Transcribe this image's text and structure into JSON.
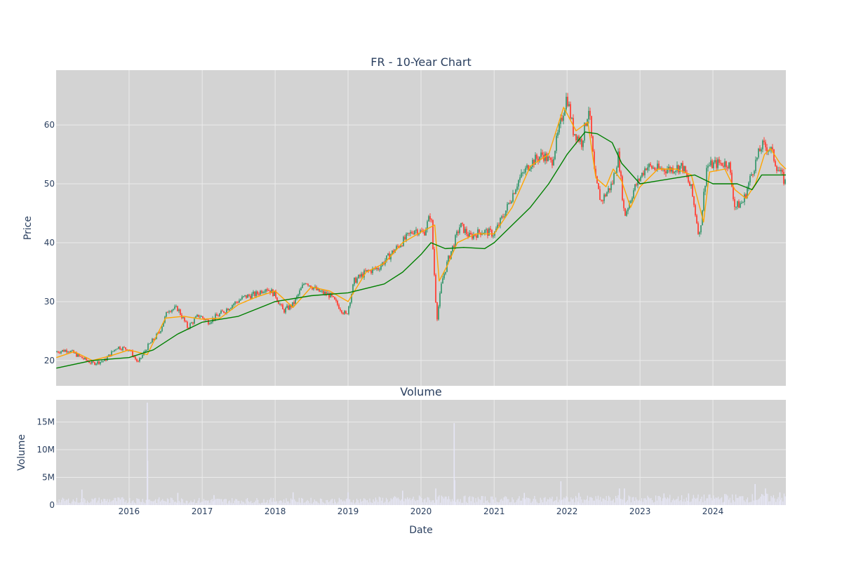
{
  "chart_data": [
    {
      "type": "candlestick",
      "title": "FR - 10-Year Chart",
      "ylabel": "Price",
      "xlabel": "",
      "xlim": [
        "2015-01-01",
        "2024-12-31"
      ],
      "ylim": [
        15.7,
        69.3
      ],
      "yticks": [
        20,
        30,
        40,
        50,
        60
      ],
      "xticks": [
        "2016",
        "2017",
        "2018",
        "2019",
        "2020",
        "2021",
        "2022",
        "2023",
        "2024"
      ],
      "grid": true,
      "colors": {
        "background": "#d3d3d3",
        "grid": "#ebebeb",
        "increasing": "#3d9970",
        "decreasing": "#ff4136",
        "ma_short": "#ffa500",
        "ma_long": "#008000"
      },
      "close_series": {
        "x": [
          "2015-01-02",
          "2015-03-01",
          "2015-05-01",
          "2015-07-01",
          "2015-09-01",
          "2015-11-01",
          "2016-01-01",
          "2016-02-15",
          "2016-04-01",
          "2016-06-01",
          "2016-07-15",
          "2016-09-01",
          "2016-10-20",
          "2016-12-15",
          "2017-02-01",
          "2017-04-01",
          "2017-06-01",
          "2017-08-01",
          "2017-10-01",
          "2017-11-15",
          "2018-01-01",
          "2018-02-10",
          "2018-04-01",
          "2018-06-01",
          "2018-08-01",
          "2018-10-01",
          "2018-12-24",
          "2019-02-01",
          "2019-04-01",
          "2019-06-01",
          "2019-08-01",
          "2019-10-01",
          "2019-12-01",
          "2020-01-15",
          "2020-02-20",
          "2020-03-20",
          "2020-04-15",
          "2020-05-15",
          "2020-06-15",
          "2020-07-15",
          "2020-09-01",
          "2020-11-01",
          "2021-01-01",
          "2021-03-01",
          "2021-05-01",
          "2021-07-01",
          "2021-09-01",
          "2021-10-15",
          "2021-12-01",
          "2021-12-31",
          "2022-02-01",
          "2022-03-15",
          "2022-04-20",
          "2022-05-20",
          "2022-06-20",
          "2022-08-15",
          "2022-09-15",
          "2022-10-15",
          "2022-12-01",
          "2023-02-01",
          "2023-04-01",
          "2023-06-01",
          "2023-08-01",
          "2023-09-15",
          "2023-10-25",
          "2023-12-01",
          "2024-02-01",
          "2024-03-20",
          "2024-04-20",
          "2024-06-01",
          "2024-07-15",
          "2024-09-01",
          "2024-10-15",
          "2024-11-15",
          "2024-12-31"
        ],
        "y": [
          21.5,
          21.8,
          20.6,
          19.5,
          20.0,
          22.3,
          21.9,
          19.6,
          22.3,
          24.8,
          28.7,
          28.8,
          25.6,
          27.7,
          26.6,
          27.9,
          29.5,
          30.8,
          31.3,
          32.4,
          31.2,
          28.4,
          29.5,
          33.5,
          31.8,
          31.1,
          27.6,
          33.5,
          35.0,
          35.7,
          38.0,
          40.2,
          42.3,
          41.6,
          45.0,
          27.0,
          33.5,
          37.0,
          40.0,
          43.0,
          41.0,
          42.0,
          41.5,
          45.5,
          50.5,
          53.5,
          55.0,
          53.5,
          60.5,
          65.0,
          59.0,
          57.0,
          63.0,
          51.0,
          47.0,
          50.0,
          55.0,
          44.5,
          49.0,
          53.0,
          52.5,
          52.5,
          53.0,
          49.0,
          41.0,
          53.0,
          53.5,
          53.5,
          46.0,
          47.0,
          52.0,
          56.5,
          56.0,
          53.0,
          50.0
        ]
      },
      "series": [
        {
          "x": [
            "2015-01-02",
            "2015-04-01",
            "2015-07-01",
            "2015-10-01",
            "2016-01-01",
            "2016-04-01",
            "2016-07-01",
            "2016-10-01",
            "2017-01-01",
            "2017-04-01",
            "2017-07-01",
            "2017-10-01",
            "2018-01-01",
            "2018-04-01",
            "2018-07-01",
            "2018-10-01",
            "2019-01-01",
            "2019-04-01",
            "2019-07-01",
            "2019-10-01",
            "2020-01-01",
            "2020-03-10",
            "2020-04-01",
            "2020-05-10",
            "2020-07-01",
            "2020-10-01",
            "2021-01-01",
            "2021-04-01",
            "2021-07-01",
            "2021-10-01",
            "2021-12-15",
            "2022-02-15",
            "2022-04-15",
            "2022-05-25",
            "2022-07-15",
            "2022-08-20",
            "2022-10-01",
            "2022-11-15",
            "2023-01-01",
            "2023-04-01",
            "2023-07-01",
            "2023-09-15",
            "2023-11-15",
            "2023-12-15",
            "2024-03-01",
            "2024-04-20",
            "2024-06-15",
            "2024-08-01",
            "2024-09-15",
            "2024-10-15",
            "2024-12-01",
            "2024-12-31"
          ],
          "y": [
            20.5,
            21.5,
            20.0,
            20.8,
            21.8,
            21.0,
            27.2,
            27.5,
            27.0,
            27.2,
            29.5,
            30.8,
            31.8,
            29.0,
            32.5,
            31.8,
            30.0,
            35.0,
            36.5,
            40.0,
            41.8,
            43.0,
            33.5,
            36.0,
            40.0,
            41.5,
            41.5,
            46.0,
            53.0,
            55.0,
            63.0,
            59.0,
            60.5,
            51.0,
            49.5,
            52.5,
            50.5,
            46.0,
            49.5,
            52.5,
            52.5,
            51.5,
            43.5,
            52.0,
            52.5,
            49.0,
            47.5,
            50.0,
            55.0,
            56.0,
            53.5,
            52.5
          ],
          "color": "#ffa500"
        },
        {
          "x": [
            "2015-01-02",
            "2015-07-01",
            "2016-01-01",
            "2016-05-01",
            "2016-09-01",
            "2017-01-01",
            "2017-07-01",
            "2018-01-01",
            "2018-07-01",
            "2019-01-01",
            "2019-07-01",
            "2019-10-01",
            "2020-01-01",
            "2020-02-20",
            "2020-05-01",
            "2020-08-01",
            "2020-11-15",
            "2021-01-01",
            "2021-07-01",
            "2021-10-01",
            "2022-01-01",
            "2022-04-01",
            "2022-06-01",
            "2022-08-15",
            "2022-10-01",
            "2023-01-01",
            "2023-04-01",
            "2023-07-01",
            "2023-10-01",
            "2024-01-01",
            "2024-05-01",
            "2024-07-15",
            "2024-09-01",
            "2024-12-31"
          ],
          "y": [
            18.7,
            20.0,
            20.5,
            21.8,
            24.5,
            26.5,
            27.5,
            30.0,
            31.0,
            31.5,
            33.0,
            35.0,
            38.0,
            40.0,
            39.0,
            39.2,
            39.0,
            40.0,
            46.0,
            50.0,
            55.0,
            58.8,
            58.5,
            57.0,
            53.5,
            50.0,
            50.5,
            51.0,
            51.5,
            50.0,
            50.0,
            49.0,
            51.5,
            51.5
          ],
          "color": "#008000"
        }
      ]
    },
    {
      "type": "bar",
      "title": "Volume",
      "ylabel": "Volume",
      "xlabel": "Date",
      "xlim": [
        "2015-01-01",
        "2024-12-31"
      ],
      "ylim": [
        0,
        19
      ],
      "yticks": [
        {
          "value": 0,
          "label": "0"
        },
        {
          "value": 5,
          "label": "5M"
        },
        {
          "value": 10,
          "label": "10M"
        },
        {
          "value": 15,
          "label": "15M"
        }
      ],
      "xticks": [
        "2016",
        "2017",
        "2018",
        "2019",
        "2020",
        "2021",
        "2022",
        "2023",
        "2024"
      ],
      "grid": true,
      "colors": {
        "bar": "#e6e6f5",
        "background": "#d3d3d3",
        "grid": "#ebebeb"
      },
      "baseline": {
        "x": [
          "2015-01-01",
          "2016-01-01",
          "2017-01-01",
          "2018-01-01",
          "2019-01-01",
          "2020-01-01",
          "2021-01-01",
          "2022-01-01",
          "2023-01-01",
          "2024-01-01",
          "2024-12-31"
        ],
        "y": [
          0.8,
          0.9,
          0.8,
          0.8,
          0.8,
          1.1,
          1.0,
          1.0,
          1.1,
          1.2,
          1.3
        ]
      },
      "spikes": {
        "x": [
          "2015-05-10",
          "2016-04-01",
          "2016-04-03",
          "2016-09-01",
          "2017-03-01",
          "2018-04-01",
          "2019-01-01",
          "2019-10-01",
          "2020-03-15",
          "2020-06-15",
          "2020-06-18",
          "2021-06-01",
          "2021-12-01",
          "2022-03-01",
          "2022-09-20",
          "2022-10-15",
          "2023-05-01",
          "2023-09-01",
          "2024-03-01",
          "2024-07-30",
          "2024-09-20",
          "2024-12-01"
        ],
        "y": [
          2.8,
          18.5,
          8.0,
          2.2,
          1.8,
          2.3,
          2.3,
          2.6,
          3.0,
          14.8,
          4.5,
          2.2,
          4.3,
          2.2,
          3.0,
          3.0,
          2.1,
          2.1,
          2.0,
          3.8,
          3.0,
          2.3
        ]
      }
    }
  ]
}
